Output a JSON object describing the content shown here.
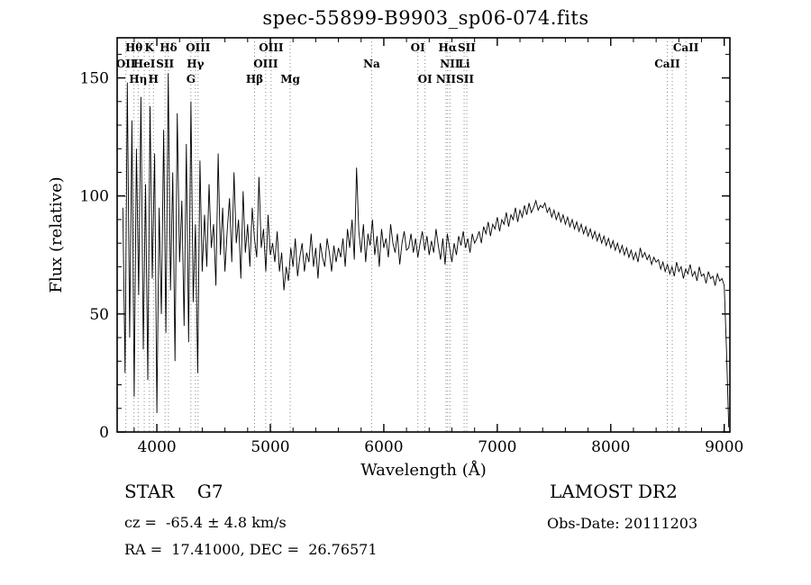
{
  "title": "spec-55899-B9903_sp06-074.fits",
  "annotations": {
    "class_label": "STAR    G7",
    "survey": "LAMOST DR2",
    "cz": "cz =  -65.4 ± 4.8 km/s",
    "obs_date": "Obs-Date: 20111203",
    "radec": "RA =  17.41000, DEC =  26.76571"
  },
  "chart_data": {
    "type": "line",
    "title": "spec-55899-B9903_sp06-074.fits",
    "xlabel": "Wavelength (Å)",
    "ylabel": "Flux (relative)",
    "xlim": [
      3650,
      9050
    ],
    "ylim": [
      0,
      167
    ],
    "x_ticks": [
      4000,
      5000,
      6000,
      7000,
      8000,
      9000
    ],
    "y_ticks": [
      0,
      50,
      100,
      150
    ],
    "x_minor_step": 200,
    "y_minor_step": 10,
    "grid": false,
    "legend": "none",
    "line_color": "#000000",
    "marker_line_color": "#8a8a8a",
    "x_start": 3700,
    "x_step": 20,
    "flux": [
      95,
      25,
      148,
      40,
      132,
      15,
      120,
      58,
      142,
      35,
      105,
      22,
      138,
      65,
      118,
      8,
      95,
      50,
      128,
      42,
      152,
      60,
      110,
      30,
      135,
      72,
      98,
      45,
      122,
      38,
      140,
      55,
      88,
      25,
      115,
      68,
      92,
      70,
      105,
      78,
      88,
      62,
      118,
      75,
      95,
      68,
      85,
      99,
      72,
      110,
      80,
      90,
      65,
      102,
      76,
      88,
      70,
      95,
      82,
      74,
      108,
      78,
      86,
      68,
      92,
      75,
      80,
      72,
      85,
      68,
      76,
      60,
      70,
      64,
      78,
      70,
      82,
      66,
      74,
      80,
      68,
      76,
      72,
      84,
      70,
      78,
      65,
      80,
      74,
      70,
      82,
      76,
      68,
      79,
      72,
      78,
      74,
      82,
      70,
      86,
      78,
      90,
      73,
      112,
      85,
      76,
      88,
      72,
      84,
      79,
      90,
      75,
      83,
      70,
      86,
      78,
      82,
      74,
      88,
      80,
      76,
      84,
      71,
      80,
      85,
      77,
      78,
      84,
      76,
      82,
      74,
      80,
      85,
      77,
      83,
      75,
      81,
      76,
      86,
      79,
      73,
      82,
      71,
      84,
      78,
      72,
      80,
      75,
      83,
      79,
      85,
      78,
      82,
      76,
      84,
      80,
      82,
      85,
      80,
      87,
      84,
      89,
      83,
      88,
      86,
      91,
      85,
      90,
      88,
      93,
      87,
      92,
      90,
      95,
      89,
      94,
      91,
      96,
      92,
      97,
      93,
      95,
      98,
      94,
      96,
      95,
      97,
      93,
      95,
      91,
      94,
      90,
      93,
      89,
      92,
      88,
      91,
      87,
      90,
      86,
      89,
      85,
      88,
      84,
      87,
      83,
      86,
      82,
      85,
      81,
      84,
      80,
      83,
      79,
      82,
      78,
      81,
      77,
      80,
      76,
      79,
      75,
      78,
      74,
      77,
      73,
      76,
      72,
      78,
      74,
      76,
      73,
      75,
      71,
      74,
      72,
      73,
      69,
      72,
      68,
      71,
      67,
      70,
      66,
      72,
      68,
      70,
      65,
      69,
      67,
      71,
      66,
      68,
      64,
      70,
      66,
      67,
      63,
      68,
      65,
      66,
      62,
      67,
      64,
      65,
      62,
      35,
      2
    ],
    "line_markers": [
      {
        "label": "Hθ",
        "wavelength": 3798,
        "row": 1
      },
      {
        "label": "K",
        "wavelength": 3934,
        "row": 1
      },
      {
        "label": "Hδ",
        "wavelength": 4102,
        "row": 1
      },
      {
        "label": "OII",
        "wavelength": 3727,
        "row": 2
      },
      {
        "label": "HeI",
        "wavelength": 3889,
        "row": 2
      },
      {
        "label": "SII",
        "wavelength": 4072,
        "row": 2
      },
      {
        "label": "Hη",
        "wavelength": 3835,
        "row": 3
      },
      {
        "label": "H",
        "wavelength": 3970,
        "row": 3
      },
      {
        "label": "OIII",
        "wavelength": 4363,
        "row": 1
      },
      {
        "label": "Hγ",
        "wavelength": 4340,
        "row": 2
      },
      {
        "label": "G",
        "wavelength": 4300,
        "row": 3
      },
      {
        "label": "OIII",
        "wavelength": 5007,
        "row": 1
      },
      {
        "label": "OIII",
        "wavelength": 4959,
        "row": 2
      },
      {
        "label": "Hβ",
        "wavelength": 4861,
        "row": 3
      },
      {
        "label": "Mg",
        "wavelength": 5175,
        "row": 3
      },
      {
        "label": "Na",
        "wavelength": 5893,
        "row": 2
      },
      {
        "label": "OI",
        "wavelength": 6300,
        "row": 1
      },
      {
        "label": "OI",
        "wavelength": 6363,
        "row": 3
      },
      {
        "label": "Hα",
        "wavelength": 6563,
        "row": 1
      },
      {
        "label": "SII",
        "wavelength": 6731,
        "row": 1
      },
      {
        "label": "NII",
        "wavelength": 6583,
        "row": 2
      },
      {
        "label": "Li",
        "wavelength": 6708,
        "row": 2
      },
      {
        "label": "NII",
        "wavelength": 6548,
        "row": 3
      },
      {
        "label": "SII",
        "wavelength": 6716,
        "row": 3
      },
      {
        "label": "CaII",
        "wavelength": 8662,
        "row": 1
      },
      {
        "label": "CaII",
        "wavelength": 8498,
        "row": 2
      }
    ],
    "dotted_lines": [
      3727,
      3798,
      3835,
      3889,
      3934,
      3970,
      4072,
      4102,
      4300,
      4340,
      4363,
      4861,
      4959,
      5007,
      5175,
      5893,
      6300,
      6363,
      6548,
      6563,
      6583,
      6708,
      6731,
      8498,
      8542,
      8662
    ]
  }
}
